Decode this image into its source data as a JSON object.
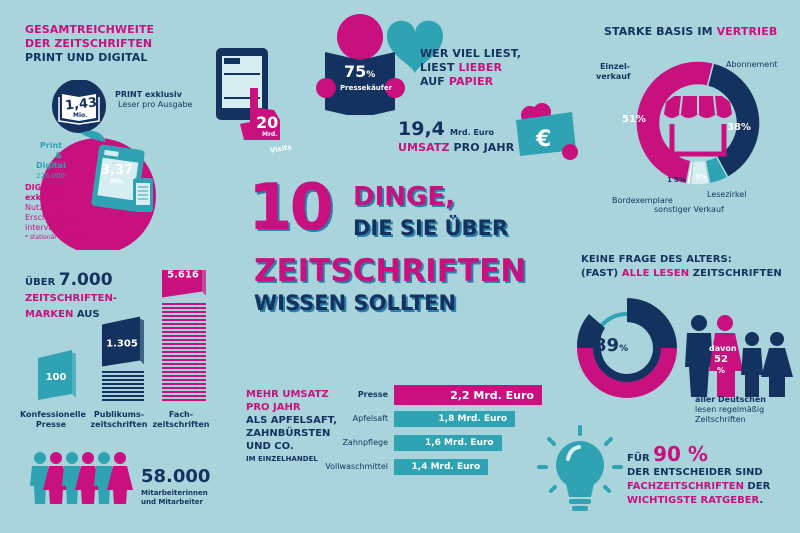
{
  "colors": {
    "background": "#a9d4dc",
    "magenta": "#c8107f",
    "navy": "#14325f",
    "teal": "#2fa3b3",
    "light": "#d6eef2"
  },
  "reach": {
    "title_line1": "GESAMTREICHWEITE",
    "title_line2": "DER ZEITSCHRIFTEN",
    "title_line3": "PRINT UND DIGITAL",
    "print_value": "1,43",
    "print_unit": "Mio.",
    "print_label": "PRINT exklusiv",
    "print_sub": "Leser pro Ausgabe",
    "both_label1": "Print &",
    "both_label2": "Digital",
    "both_value": "226.000",
    "digital_value": "3,37",
    "digital_unit": "Mio.",
    "digital_label1": "DIGITAL*",
    "digital_label2": "exklusiv",
    "digital_sub1": "Nutzer pro",
    "digital_sub2": "Erscheinungs-",
    "digital_sub3": "intervall",
    "footnote": "* stationär und mobil"
  },
  "visits": {
    "value": "20",
    "unit": "Mrd.",
    "label": "Visits"
  },
  "buyers": {
    "value": "75",
    "percent": "%",
    "label": "Pressekäufer",
    "text1": "WER VIEL LIEST,",
    "text2a": "LIEST ",
    "text2b": "LIEBER",
    "text3a": "AUF ",
    "text3b": "PAPIER"
  },
  "revenue": {
    "value": "19,4",
    "unit": "Mrd. Euro",
    "label_a": "UMSATZ",
    "label_b": " PRO JAHR",
    "icon": "euro-icon"
  },
  "sales": {
    "title_a": "STARKE BASIS IM ",
    "title_b": "VERTRIEB",
    "icon": "store-icon"
  },
  "headline": {
    "number": "10",
    "line1": "DINGE,",
    "line2": "DIE SIE ÜBER",
    "line3": "ZEITSCHRIFTEN",
    "line4": "WISSEN SOLLTEN"
  },
  "brands": {
    "title_a": "ÜBER ",
    "title_b": "7.000",
    "title_c": "ZEITSCHRIFTEN-",
    "title_d": "MARKEN",
    "title_e": " AUS"
  },
  "employees": {
    "value": "58.000",
    "label1": "Mitarbeiterinnen",
    "label2": "und Mitarbeiter"
  },
  "umsatz_compare": {
    "title1": "MEHR UMSATZ",
    "title2": "PRO JAHR",
    "title3": "ALS APFELSAFT,",
    "title4": "ZAHNBÜRSTEN",
    "title5": "UND CO.",
    "title6": "IM EINZELHANDEL"
  },
  "age": {
    "title1": "KEINE FRAGE DES ALTERS:",
    "title2a": "(FAST) ",
    "title2b": "ALLE LESEN",
    "title2c": " ZEITSCHRIFTEN",
    "value": "89",
    "percent": "%",
    "davon": "davon",
    "sub_value": "52",
    "sub_percent": "%",
    "caption1": "aller Deutschen",
    "caption2": "lesen regelmäßig",
    "caption3": "Zeitschriften"
  },
  "decider": {
    "line1a": "FÜR ",
    "line1b": "90 %",
    "line2": "DER ENTSCHEIDER SIND",
    "line3a": "FACHZEITSCHRIFTEN",
    "line3b": " DER",
    "line4a": "WICHTIGSTE RATGEBER",
    "line4b": ".",
    "icon": "lightbulb-icon"
  },
  "chart_data": [
    {
      "type": "pie",
      "title": "STARKE BASIS IM VERTRIEB",
      "categories": [
        "Einzelverkauf",
        "Abonnement",
        "Lesezirkel",
        "sonstiger Verkauf",
        "Bordexemplare"
      ],
      "values": [
        51,
        38,
        5,
        5,
        1
      ],
      "labels": [
        "51%",
        "38%",
        "5%",
        "5%",
        "1"
      ]
    },
    {
      "type": "bar",
      "title": "ÜBER 7.000 ZEITSCHRIFTENMARKEN AUS",
      "categories": [
        "Konfessionelle Presse",
        "Publikumszeitschriften",
        "Fachzeitschriften"
      ],
      "category_lines": [
        [
          "Konfessionelle",
          "Presse"
        ],
        [
          "Publikums-",
          "zeitschriften"
        ],
        [
          "Fach-",
          "zeitschriften"
        ]
      ],
      "values": [
        100,
        1305,
        5616
      ],
      "labels": [
        "100",
        "1.305",
        "5.616"
      ]
    },
    {
      "type": "bar",
      "title": "MEHR UMSATZ PRO JAHR ALS APFELSAFT, ZAHNBÜRSTEN UND CO. IM EINZELHANDEL",
      "categories": [
        "Presse",
        "Apfelsaft",
        "Zahnpflege",
        "Vollwaschmittel"
      ],
      "values": [
        2.2,
        1.8,
        1.6,
        1.4
      ],
      "labels": [
        "2,2 Mrd. Euro",
        "1,8 Mrd. Euro",
        "1,6 Mrd. Euro",
        "1,4 Mrd. Euro"
      ],
      "unit": "Mrd. Euro"
    }
  ]
}
